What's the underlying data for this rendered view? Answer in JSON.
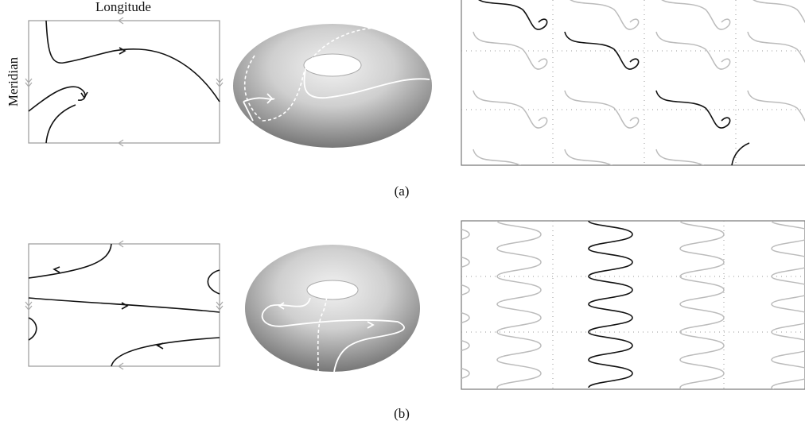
{
  "panel_a": {
    "x_label": "Longitude",
    "y_label": "Meridian",
    "caption": "(a)"
  },
  "panel_b": {
    "caption": "(b)"
  }
}
